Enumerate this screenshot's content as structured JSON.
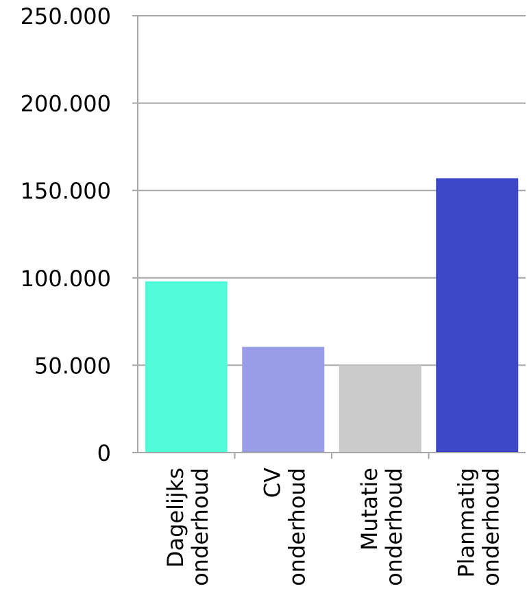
{
  "chart_data": {
    "type": "bar",
    "categories": [
      [
        "Dagelijks",
        "onderhoud"
      ],
      [
        "CV",
        "onderhoud"
      ],
      [
        "Mutatie",
        "onderhoud"
      ],
      [
        "Planmatig",
        "onderhoud"
      ]
    ],
    "values": [
      98000,
      60500,
      50000,
      157000
    ],
    "colors": [
      "#52fcd8",
      "#999de6",
      "#cbcbcb",
      "#3c48c6"
    ],
    "yticks": [
      0,
      50000,
      100000,
      150000,
      200000,
      250000
    ],
    "ytick_labels": [
      "0",
      "50.000",
      "100.000",
      "150.000",
      "200.000",
      "250.000"
    ],
    "ylim": [
      0,
      250000
    ],
    "grid": true,
    "title": "",
    "xlabel": "",
    "ylabel": ""
  }
}
